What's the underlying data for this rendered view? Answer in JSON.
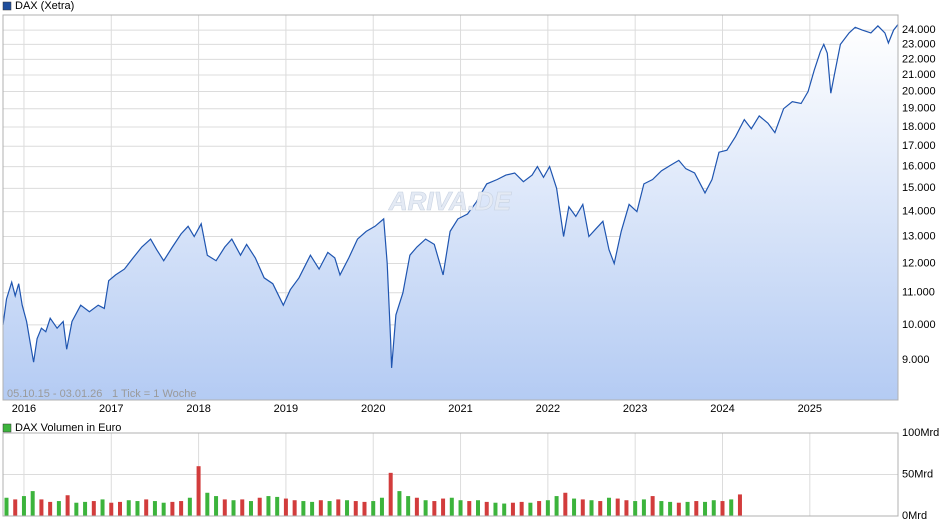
{
  "chart_data": [
    {
      "type": "line",
      "title": "DAX (Xetra)",
      "watermark": "ARIVA.DE",
      "range_label": "05.10.15 - 03.01.26",
      "tick_note": "1 Tick = 1 Woche",
      "log_scale": true,
      "grid": true,
      "legend_color": "#1f4e9c",
      "xlim": [
        2015.76,
        2026.01
      ],
      "xticks": [
        2016,
        2017,
        2018,
        2019,
        2020,
        2021,
        2022,
        2023,
        2024,
        2025
      ],
      "ylim": [
        8000,
        25100
      ],
      "yticks": [
        {
          "value": 9000,
          "label": "9.000"
        },
        {
          "value": 10000,
          "label": "10.000"
        },
        {
          "value": 11000,
          "label": "11.000"
        },
        {
          "value": 12000,
          "label": "12.000"
        },
        {
          "value": 13000,
          "label": "13.000"
        },
        {
          "value": 14000,
          "label": "14.000"
        },
        {
          "value": 15000,
          "label": "15.000"
        },
        {
          "value": 16000,
          "label": "16.000"
        },
        {
          "value": 17000,
          "label": "17.000"
        },
        {
          "value": 18000,
          "label": "18.000"
        },
        {
          "value": 19000,
          "label": "19.000"
        },
        {
          "value": 20000,
          "label": "20.000"
        },
        {
          "value": 21000,
          "label": "21.000"
        },
        {
          "value": 22000,
          "label": "22.000"
        },
        {
          "value": 23000,
          "label": "23.000"
        },
        {
          "value": 24000,
          "label": "24.000"
        }
      ],
      "series": [
        {
          "name": "DAX (Xetra)",
          "color": "#1f55b0",
          "x": [
            2015.76,
            2015.8,
            2015.86,
            2015.9,
            2015.94,
            2015.98,
            2016.03,
            2016.07,
            2016.11,
            2016.15,
            2016.2,
            2016.25,
            2016.3,
            2016.38,
            2016.45,
            2016.49,
            2016.55,
            2016.65,
            2016.75,
            2016.85,
            2016.92,
            2016.97,
            2017.05,
            2017.15,
            2017.25,
            2017.35,
            2017.45,
            2017.52,
            2017.6,
            2017.7,
            2017.8,
            2017.88,
            2017.95,
            2018.03,
            2018.1,
            2018.2,
            2018.3,
            2018.38,
            2018.48,
            2018.55,
            2018.65,
            2018.75,
            2018.85,
            2018.97,
            2019.05,
            2019.15,
            2019.28,
            2019.38,
            2019.48,
            2019.56,
            2019.62,
            2019.72,
            2019.82,
            2019.92,
            2020.02,
            2020.12,
            2020.16,
            2020.2,
            2020.21,
            2020.26,
            2020.34,
            2020.42,
            2020.5,
            2020.6,
            2020.7,
            2020.8,
            2020.88,
            2020.97,
            2021.08,
            2021.18,
            2021.3,
            2021.42,
            2021.52,
            2021.62,
            2021.72,
            2021.82,
            2021.88,
            2021.95,
            2022.02,
            2022.1,
            2022.18,
            2022.24,
            2022.32,
            2022.4,
            2022.47,
            2022.55,
            2022.63,
            2022.7,
            2022.76,
            2022.84,
            2022.93,
            2023.02,
            2023.1,
            2023.2,
            2023.3,
            2023.42,
            2023.5,
            2023.58,
            2023.68,
            2023.8,
            2023.88,
            2023.96,
            2024.05,
            2024.15,
            2024.25,
            2024.33,
            2024.42,
            2024.52,
            2024.6,
            2024.7,
            2024.8,
            2024.9,
            2024.98,
            2025.05,
            2025.12,
            2025.16,
            2025.2,
            2025.24,
            2025.28,
            2025.35,
            2025.45,
            2025.52,
            2025.6,
            2025.7,
            2025.78,
            2025.86,
            2025.9,
            2025.96,
            2026.01
          ],
          "values": [
            10000,
            10800,
            11350,
            10900,
            11300,
            10600,
            10100,
            9500,
            8950,
            9600,
            9900,
            9800,
            10200,
            9900,
            10100,
            9300,
            10100,
            10600,
            10400,
            10600,
            10500,
            11400,
            11600,
            11800,
            12200,
            12600,
            12900,
            12500,
            12100,
            12600,
            13100,
            13400,
            13000,
            13500,
            12300,
            12100,
            12600,
            12900,
            12300,
            12700,
            12200,
            11500,
            11300,
            10600,
            11100,
            11500,
            12300,
            11800,
            12400,
            12200,
            11600,
            12200,
            12900,
            13200,
            13400,
            13700,
            12000,
            9500,
            8800,
            10300,
            11000,
            12300,
            12600,
            12900,
            12700,
            11600,
            13200,
            13700,
            13900,
            14400,
            15200,
            15400,
            15600,
            15700,
            15300,
            15600,
            16000,
            15500,
            16000,
            15000,
            13000,
            14200,
            13800,
            14300,
            13000,
            13300,
            13600,
            12500,
            12000,
            13200,
            14300,
            14000,
            15200,
            15400,
            15800,
            16100,
            16300,
            15900,
            15700,
            14800,
            15400,
            16700,
            16800,
            17500,
            18400,
            17900,
            18600,
            18200,
            17700,
            19000,
            19400,
            19300,
            20000,
            21300,
            22500,
            23000,
            22400,
            19900,
            21000,
            23000,
            23800,
            24200,
            24000,
            23800,
            24300,
            23800,
            23100,
            24000,
            24400
          ]
        }
      ]
    },
    {
      "type": "bar",
      "title": "DAX Volumen in Euro",
      "legend_color": "#3cb43c",
      "grid": true,
      "xlim": [
        2015.76,
        2026.01
      ],
      "xticks": [
        2016,
        2017,
        2018,
        2019,
        2020,
        2021,
        2022,
        2023,
        2024,
        2025
      ],
      "ylim": [
        0,
        100
      ],
      "yticks": [
        {
          "value": 0,
          "label": "0Mrd"
        },
        {
          "value": 50,
          "label": "50Mrd"
        },
        {
          "value": 100,
          "label": "100Mrd"
        }
      ],
      "x": [
        2015.8,
        2015.9,
        2016.0,
        2016.1,
        2016.2,
        2016.3,
        2016.4,
        2016.5,
        2016.6,
        2016.7,
        2016.8,
        2016.9,
        2017.0,
        2017.1,
        2017.2,
        2017.3,
        2017.4,
        2017.5,
        2017.6,
        2017.7,
        2017.8,
        2017.9,
        2018.0,
        2018.1,
        2018.2,
        2018.3,
        2018.4,
        2018.5,
        2018.6,
        2018.7,
        2018.8,
        2018.9,
        2019.0,
        2019.1,
        2019.2,
        2019.3,
        2019.4,
        2019.5,
        2019.6,
        2019.7,
        2019.8,
        2019.9,
        2020.0,
        2020.1,
        2020.2,
        2020.3,
        2020.4,
        2020.5,
        2020.6,
        2020.7,
        2020.8,
        2020.9,
        2021.0,
        2021.1,
        2021.2,
        2021.3,
        2021.4,
        2021.5,
        2021.6,
        2021.7,
        2021.8,
        2021.9,
        2022.0,
        2022.1,
        2022.2,
        2022.3,
        2022.4,
        2022.5,
        2022.6,
        2022.7,
        2022.8,
        2022.9,
        2023.0,
        2023.1,
        2023.2,
        2023.3,
        2023.4,
        2023.5,
        2023.6,
        2023.7,
        2023.8,
        2023.9,
        2024.0,
        2024.1,
        2024.2
      ],
      "values": [
        22,
        20,
        24,
        30,
        20,
        17,
        18,
        25,
        16,
        17,
        18,
        20,
        16,
        17,
        19,
        18,
        20,
        18,
        16,
        17,
        18,
        22,
        60,
        28,
        24,
        20,
        19,
        20,
        18,
        22,
        24,
        23,
        21,
        19,
        18,
        17,
        19,
        18,
        20,
        19,
        18,
        17,
        18,
        22,
        52,
        30,
        24,
        22,
        19,
        18,
        21,
        22,
        19,
        18,
        19,
        17,
        16,
        15,
        16,
        17,
        16,
        18,
        19,
        24,
        28,
        21,
        20,
        19,
        18,
        22,
        21,
        19,
        18,
        20,
        24,
        18,
        17,
        16,
        17,
        18,
        17,
        19,
        18,
        20,
        26
      ],
      "colors": [
        "#3cb43c",
        "#d23c3c",
        "#3cb43c",
        "#3cb43c",
        "#d23c3c",
        "#d23c3c",
        "#3cb43c",
        "#d23c3c",
        "#3cb43c",
        "#3cb43c",
        "#d23c3c",
        "#3cb43c",
        "#d23c3c",
        "#d23c3c",
        "#3cb43c",
        "#3cb43c",
        "#d23c3c",
        "#3cb43c",
        "#3cb43c",
        "#d23c3c",
        "#d23c3c",
        "#3cb43c",
        "#d23c3c",
        "#3cb43c",
        "#3cb43c",
        "#d23c3c",
        "#3cb43c",
        "#d23c3c",
        "#3cb43c",
        "#d23c3c",
        "#3cb43c",
        "#3cb43c",
        "#d23c3c",
        "#d23c3c",
        "#3cb43c",
        "#3cb43c",
        "#d23c3c",
        "#3cb43c",
        "#d23c3c",
        "#3cb43c",
        "#d23c3c",
        "#d23c3c",
        "#3cb43c",
        "#3cb43c",
        "#d23c3c",
        "#3cb43c",
        "#3cb43c",
        "#d23c3c",
        "#3cb43c",
        "#d23c3c",
        "#d23c3c",
        "#3cb43c",
        "#3cb43c",
        "#d23c3c",
        "#3cb43c",
        "#d23c3c",
        "#3cb43c",
        "#3cb43c",
        "#d23c3c",
        "#d23c3c",
        "#3cb43c",
        "#d23c3c",
        "#3cb43c",
        "#3cb43c",
        "#d23c3c",
        "#3cb43c",
        "#d23c3c",
        "#3cb43c",
        "#d23c3c",
        "#3cb43c",
        "#d23c3c",
        "#d23c3c",
        "#3cb43c",
        "#3cb43c",
        "#d23c3c",
        "#3cb43c",
        "#3cb43c",
        "#d23c3c",
        "#3cb43c",
        "#d23c3c",
        "#3cb43c",
        "#3cb43c",
        "#d23c3c",
        "#3cb43c",
        "#d23c3c"
      ]
    }
  ]
}
